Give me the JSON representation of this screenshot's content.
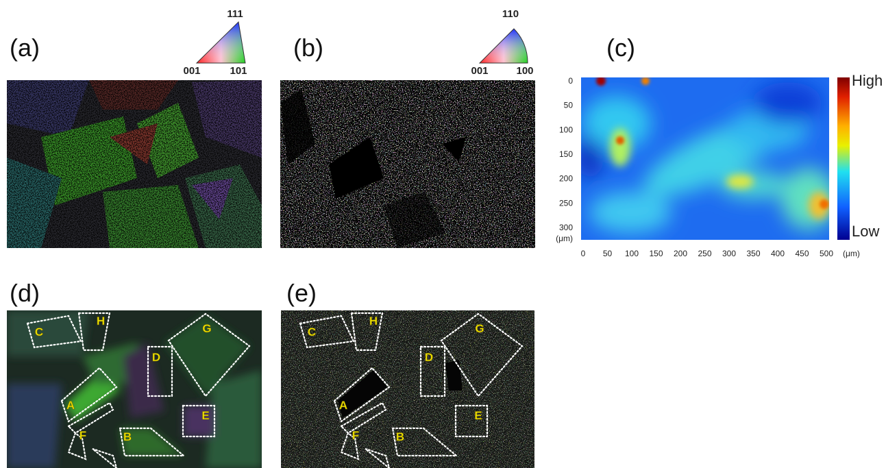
{
  "panels": [
    {
      "label": "(a)",
      "triangle": [
        "111",
        "001",
        "101"
      ]
    },
    {
      "label": "(b)",
      "triangle": [
        "110",
        "001",
        "100"
      ]
    },
    {
      "label": "(c)",
      "yticks": [
        0,
        50,
        100,
        150,
        200,
        250,
        300
      ],
      "y_unit": "(μm)",
      "xticks": [
        0,
        50,
        100,
        150,
        200,
        250,
        300,
        350,
        400,
        450,
        500
      ],
      "x_unit": "(μm)",
      "colorbar": {
        "high": "High",
        "low": "Low"
      }
    },
    {
      "label": "(d)",
      "regions": [
        "C",
        "H",
        "G",
        "D",
        "A",
        "E",
        "F",
        "B"
      ]
    },
    {
      "label": "(e)",
      "regions": [
        "C",
        "H",
        "G",
        "D",
        "A",
        "E",
        "F",
        "B"
      ]
    }
  ]
}
